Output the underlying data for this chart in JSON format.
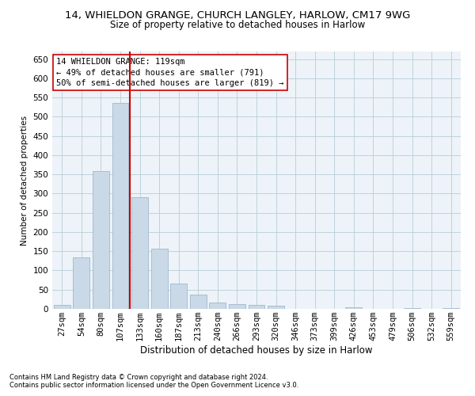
{
  "title1": "14, WHIELDON GRANGE, CHURCH LANGLEY, HARLOW, CM17 9WG",
  "title2": "Size of property relative to detached houses in Harlow",
  "xlabel": "Distribution of detached houses by size in Harlow",
  "ylabel": "Number of detached properties",
  "footer1": "Contains HM Land Registry data © Crown copyright and database right 2024.",
  "footer2": "Contains public sector information licensed under the Open Government Licence v3.0.",
  "annotation_line1": "14 WHIELDON GRANGE: 119sqm",
  "annotation_line2": "← 49% of detached houses are smaller (791)",
  "annotation_line3": "50% of semi-detached houses are larger (819) →",
  "bar_labels": [
    "27sqm",
    "54sqm",
    "80sqm",
    "107sqm",
    "133sqm",
    "160sqm",
    "187sqm",
    "213sqm",
    "240sqm",
    "266sqm",
    "293sqm",
    "320sqm",
    "346sqm",
    "373sqm",
    "399sqm",
    "426sqm",
    "453sqm",
    "479sqm",
    "506sqm",
    "532sqm",
    "559sqm"
  ],
  "bar_values": [
    10,
    135,
    358,
    535,
    290,
    157,
    65,
    38,
    17,
    13,
    10,
    8,
    0,
    0,
    0,
    5,
    0,
    0,
    3,
    0,
    3
  ],
  "bar_color": "#c9d9e8",
  "bar_edge_color": "#a0b8cc",
  "vline_color": "#cc0000",
  "ylim": [
    0,
    670
  ],
  "yticks": [
    0,
    50,
    100,
    150,
    200,
    250,
    300,
    350,
    400,
    450,
    500,
    550,
    600,
    650
  ],
  "grid_color": "#b8cdd8",
  "background_color": "#edf3f8",
  "annotation_box_color": "#ffffff",
  "annotation_box_edge": "#cc0000",
  "title1_fontsize": 9.5,
  "title2_fontsize": 8.5,
  "annotation_fontsize": 7.5,
  "ylabel_fontsize": 7.5,
  "xlabel_fontsize": 8.5
}
